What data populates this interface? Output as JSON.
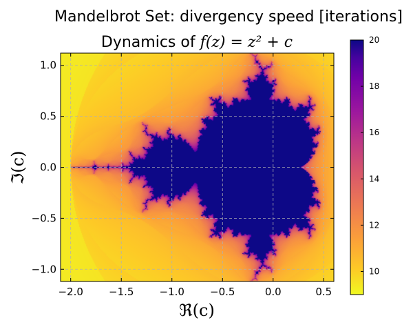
{
  "chart_data": {
    "type": "heatmap",
    "title": "Mandelbrot Set: divergency speed [iterations]",
    "subtitle": "Dynamics of f(z) = z² + c",
    "subtitle_prefix": "Dynamics of ",
    "subtitle_math": "f(z) = z² + c",
    "xlabel": "ℜ(c)",
    "ylabel": "ℑ(c)",
    "xlim": [
      -2.1,
      0.6
    ],
    "ylim": [
      -1.12,
      1.12
    ],
    "xticks": [
      -2.0,
      -1.5,
      -1.0,
      -0.5,
      0.0,
      0.5
    ],
    "xtick_labels": [
      "−2.0",
      "−1.5",
      "−1.0",
      "−0.5",
      "0.0",
      "0.5"
    ],
    "yticks": [
      -1.0,
      -0.5,
      0.0,
      0.5,
      1.0
    ],
    "ytick_labels": [
      "−1.0",
      "−0.5",
      "0.0",
      "0.5",
      "1.0"
    ],
    "grid": true,
    "colormap": "plasma_r",
    "colorbar": {
      "range": [
        9,
        20
      ],
      "ticks": [
        10,
        12,
        14,
        16,
        18,
        20
      ],
      "tick_labels": [
        "10",
        "12",
        "14",
        "16",
        "18",
        "20"
      ]
    },
    "max_iterations": 20,
    "set_color": "#0d0887",
    "background_color": "#fdca26"
  }
}
